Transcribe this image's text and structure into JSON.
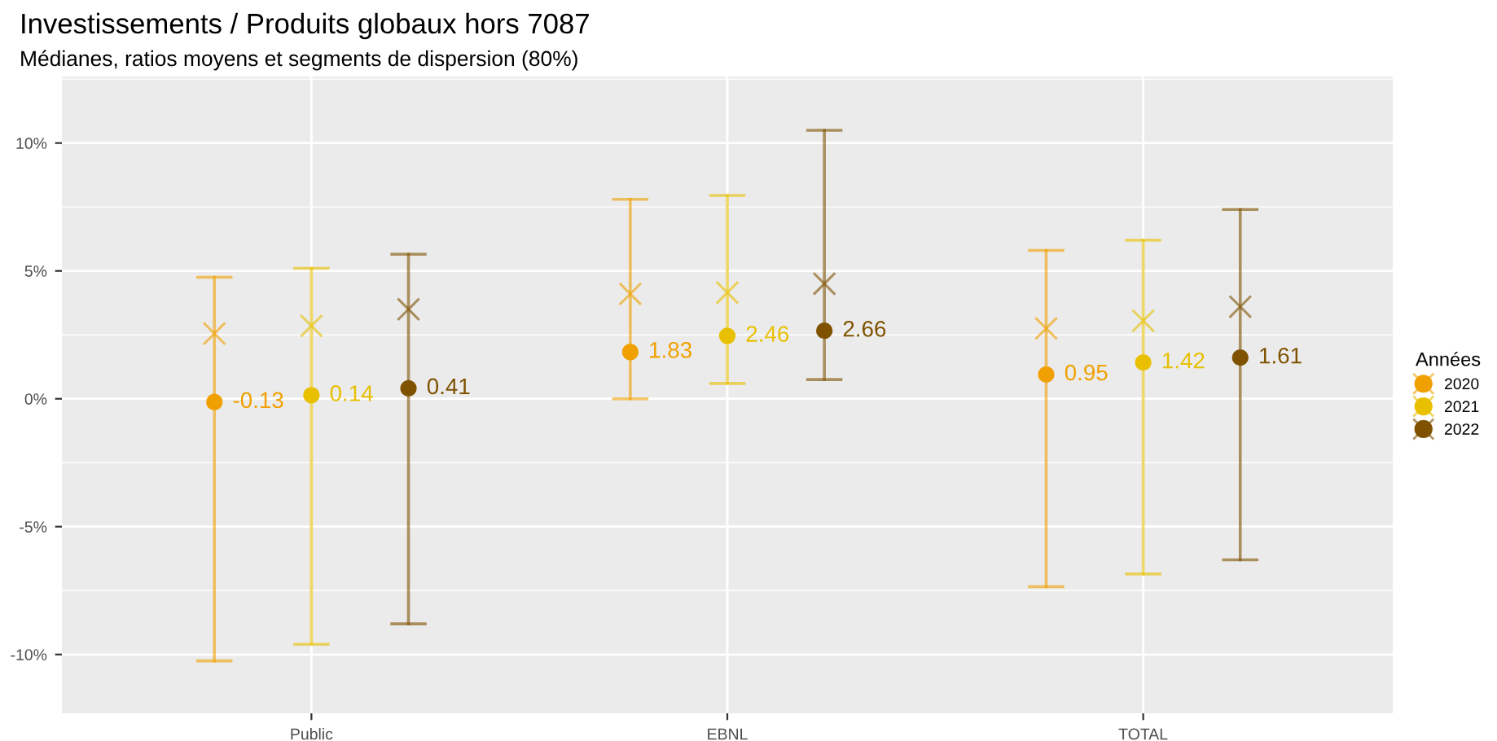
{
  "chart_data": {
    "type": "scatter",
    "title": "Investissements / Produits globaux hors 7087",
    "subtitle": "Médianes, ratios moyens et segments de dispersion (80%)",
    "categories": [
      "Public",
      "EBNL",
      "TOTAL"
    ],
    "legend_title": "Années",
    "legend": "right",
    "grid": true,
    "ylim": [
      -12.3,
      12.6
    ],
    "yticks": [
      {
        "value": -10,
        "label": "-10%"
      },
      {
        "value": -7.5,
        "label": null
      },
      {
        "value": -5,
        "label": "-5%"
      },
      {
        "value": -2.5,
        "label": null
      },
      {
        "value": 0,
        "label": "0%"
      },
      {
        "value": 2.5,
        "label": null
      },
      {
        "value": 5,
        "label": "5%"
      },
      {
        "value": 7.5,
        "label": null
      },
      {
        "value": 10,
        "label": "10%"
      },
      {
        "value": 12.5,
        "label": null
      }
    ],
    "series": [
      {
        "name": "2020",
        "color": "#f0a000",
        "marker": "circle",
        "values": [
          -0.13,
          1.83,
          0.95
        ],
        "value_labels": [
          "-0.13",
          "1.83",
          "0.95"
        ],
        "errors": [
          [
            -10.25,
            4.75
          ],
          [
            0.0,
            7.8
          ],
          [
            -7.35,
            5.8
          ]
        ]
      },
      {
        "name": "2021",
        "color": "#e8c000",
        "marker": "circle",
        "values": [
          0.14,
          2.46,
          1.42
        ],
        "value_labels": [
          "0.14",
          "2.46",
          "1.42"
        ],
        "errors": [
          [
            -9.6,
            5.1
          ],
          [
            0.6,
            7.95
          ],
          [
            -6.85,
            6.2
          ]
        ]
      },
      {
        "name": "2022",
        "color": "#7f5200",
        "marker": "circle",
        "values": [
          0.41,
          2.66,
          1.61
        ],
        "value_labels": [
          "0.41",
          "2.66",
          "1.61"
        ],
        "errors": [
          [
            -8.8,
            5.65
          ],
          [
            0.75,
            10.5
          ],
          [
            -6.3,
            7.4
          ]
        ]
      },
      {
        "color": "#f0a000",
        "marker": "cross",
        "values": [
          2.55,
          4.1,
          2.75
        ]
      },
      {
        "color": "#e8c000",
        "marker": "cross",
        "values": [
          2.85,
          4.15,
          3.05
        ]
      },
      {
        "color": "#7f5200",
        "marker": "cross",
        "values": [
          3.5,
          4.5,
          3.6
        ]
      }
    ]
  }
}
